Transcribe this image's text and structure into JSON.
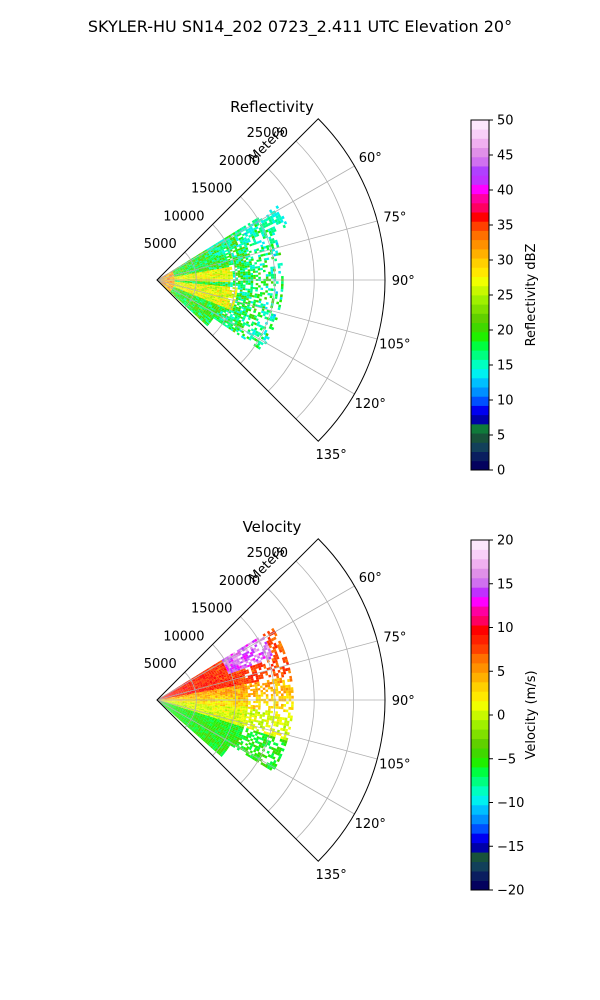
{
  "figure": {
    "suptitle": "SKYLER-HU  SN14_202  0723_2.411 UTC Elevation 20°"
  },
  "chart_data": [
    {
      "type": "heatmap",
      "title": "Reflectivity",
      "range_axis_label": "Meters",
      "range_ticks": [
        "5000",
        "10000",
        "15000",
        "20000",
        "25000"
      ],
      "range_values": [
        5000,
        10000,
        15000,
        20000,
        25000
      ],
      "range_max": 29000,
      "azimuth_range_deg": [
        45,
        135
      ],
      "azimuth_ticks": [
        "60°",
        "75°",
        "90°",
        "105°",
        "120°",
        "135°"
      ],
      "azimuth_values": [
        60,
        75,
        90,
        105,
        120,
        135
      ],
      "grid": true,
      "colorbar": {
        "label": "Reflectivity dBZ",
        "min": 0,
        "max": 50,
        "ticks": [
          "0",
          "5",
          "10",
          "15",
          "20",
          "25",
          "30",
          "35",
          "40",
          "45",
          "50"
        ],
        "tick_values": [
          0,
          5,
          10,
          15,
          20,
          25,
          30,
          35,
          40,
          45,
          50
        ],
        "colors": [
          "#04025e",
          "#0a1e5f",
          "#12405a",
          "#18523a",
          "#0f7a3a",
          "#0000a8",
          "#0000f0",
          "#0050ff",
          "#0090ff",
          "#00c0ff",
          "#00f0f0",
          "#00ffc0",
          "#00ff80",
          "#00ff40",
          "#20f000",
          "#40d800",
          "#60d000",
          "#80e000",
          "#a0f000",
          "#c8f800",
          "#f0ff00",
          "#ffe800",
          "#ffd000",
          "#ffb000",
          "#ff9000",
          "#ff7000",
          "#ff4000",
          "#ff0000",
          "#ff0060",
          "#ff00a0",
          "#ff00ff",
          "#c030ff",
          "#b040ff",
          "#d070f0",
          "#e090e8",
          "#f0b0f0",
          "#f8d0f8",
          "#fce8fc"
        ]
      }
    },
    {
      "type": "heatmap",
      "title": "Velocity",
      "range_axis_label": "Meters",
      "range_ticks": [
        "5000",
        "10000",
        "15000",
        "20000",
        "25000"
      ],
      "range_values": [
        5000,
        10000,
        15000,
        20000,
        25000
      ],
      "range_max": 29000,
      "azimuth_range_deg": [
        45,
        135
      ],
      "azimuth_ticks": [
        "60°",
        "75°",
        "90°",
        "105°",
        "120°",
        "135°"
      ],
      "azimuth_values": [
        60,
        75,
        90,
        105,
        120,
        135
      ],
      "grid": true,
      "colorbar": {
        "label": "Velocity (m/s)",
        "min": -20,
        "max": 20,
        "ticks": [
          "−20",
          "−15",
          "−10",
          "−5",
          "0",
          "5",
          "10",
          "15",
          "20"
        ],
        "tick_values": [
          -20,
          -15,
          -10,
          -5,
          0,
          5,
          10,
          15,
          20
        ],
        "colors": [
          "#04025e",
          "#0a1e5f",
          "#12405a",
          "#18523a",
          "#0000a8",
          "#0000f0",
          "#0050ff",
          "#0090ff",
          "#00c0ff",
          "#00f0f0",
          "#00ffc0",
          "#00ff80",
          "#00ff40",
          "#20f000",
          "#40d800",
          "#60d000",
          "#80e000",
          "#a0f000",
          "#c8f800",
          "#f0ff00",
          "#ffe800",
          "#ffd000",
          "#ffb000",
          "#ff9000",
          "#ff7000",
          "#ff4000",
          "#ff2000",
          "#ff0000",
          "#ff0060",
          "#ff00a0",
          "#ff00ff",
          "#c030ff",
          "#d070f0",
          "#e090e8",
          "#f0b0f0",
          "#f8d0f8",
          "#fce8fc"
        ]
      }
    }
  ]
}
